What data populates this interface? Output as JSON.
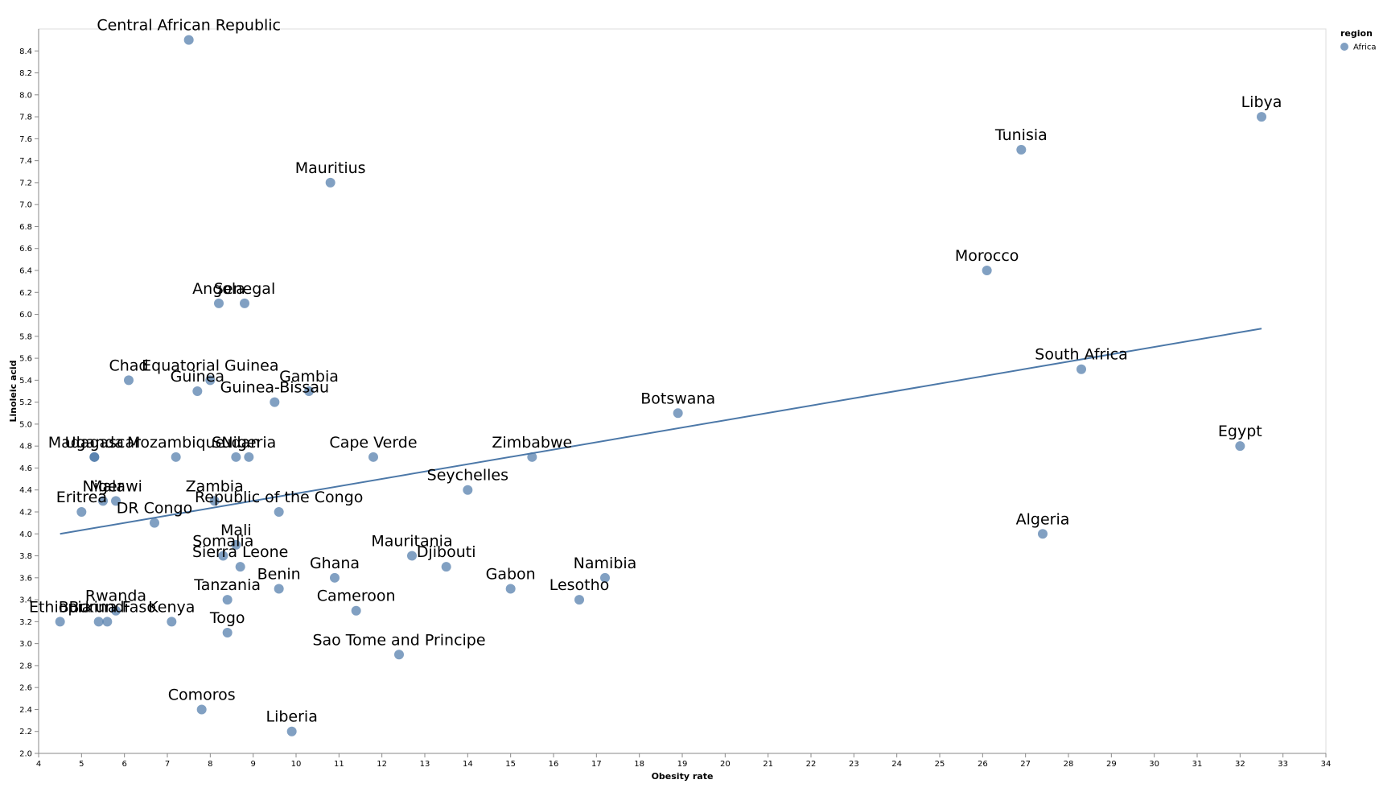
{
  "chart_data": {
    "type": "scatter",
    "xlabel": "Obesity rate",
    "ylabel": "Linoleic acid",
    "xlim": [
      4,
      34
    ],
    "ylim": [
      2.0,
      8.6
    ],
    "x_ticks": [
      4,
      5,
      6,
      7,
      8,
      9,
      10,
      11,
      12,
      13,
      14,
      15,
      16,
      17,
      18,
      19,
      20,
      21,
      22,
      23,
      24,
      25,
      26,
      27,
      28,
      29,
      30,
      31,
      32,
      33,
      34
    ],
    "y_ticks": [
      "2.0",
      "2.2",
      "2.4",
      "2.6",
      "2.8",
      "3.0",
      "3.2",
      "3.4",
      "3.6",
      "3.8",
      "4.0",
      "4.2",
      "4.4",
      "4.6",
      "4.8",
      "5.0",
      "5.2",
      "5.4",
      "5.6",
      "5.8",
      "6.0",
      "6.2",
      "6.4",
      "6.6",
      "6.8",
      "7.0",
      "7.2",
      "7.4",
      "7.6",
      "7.8",
      "8.0",
      "8.2",
      "8.4"
    ],
    "grid": false,
    "legend": {
      "title": "region",
      "entries": [
        "Africa"
      ],
      "placement": "top-right"
    },
    "colors": {
      "point": "#4c78a8",
      "line": "#4c78a8"
    },
    "trendline": {
      "x": [
        4.5,
        32.5
      ],
      "y": [
        4.0,
        5.87
      ]
    },
    "points": [
      {
        "label": "Central African Republic",
        "x": 7.5,
        "y": 8.5
      },
      {
        "label": "Libya",
        "x": 32.5,
        "y": 7.8
      },
      {
        "label": "Tunisia",
        "x": 26.9,
        "y": 7.5
      },
      {
        "label": "Mauritius",
        "x": 10.8,
        "y": 7.2
      },
      {
        "label": "Morocco",
        "x": 26.1,
        "y": 6.4
      },
      {
        "label": "Angola",
        "x": 8.2,
        "y": 6.1
      },
      {
        "label": "Senegal",
        "x": 8.8,
        "y": 6.1
      },
      {
        "label": "South Africa",
        "x": 28.3,
        "y": 5.5
      },
      {
        "label": "Chad",
        "x": 6.1,
        "y": 5.4
      },
      {
        "label": "Equatorial Guinea",
        "x": 8.0,
        "y": 5.4
      },
      {
        "label": "Guinea",
        "x": 7.7,
        "y": 5.3
      },
      {
        "label": "Gambia",
        "x": 10.3,
        "y": 5.3
      },
      {
        "label": "Guinea-Bissau",
        "x": 9.5,
        "y": 5.2
      },
      {
        "label": "Botswana",
        "x": 18.9,
        "y": 5.1
      },
      {
        "label": "Egypt",
        "x": 32.0,
        "y": 4.8
      },
      {
        "label": "Madagascar",
        "x": 5.3,
        "y": 4.7
      },
      {
        "label": "Uganda",
        "x": 5.3,
        "y": 4.7
      },
      {
        "label": "Mozambique",
        "x": 7.2,
        "y": 4.7
      },
      {
        "label": "Sudan",
        "x": 8.6,
        "y": 4.7
      },
      {
        "label": "Nigeria",
        "x": 8.9,
        "y": 4.7
      },
      {
        "label": "Cape Verde",
        "x": 11.8,
        "y": 4.7
      },
      {
        "label": "Zimbabwe",
        "x": 15.5,
        "y": 4.7
      },
      {
        "label": "Seychelles",
        "x": 14.0,
        "y": 4.4
      },
      {
        "label": "Niger",
        "x": 5.5,
        "y": 4.3
      },
      {
        "label": "Malawi",
        "x": 5.8,
        "y": 4.3
      },
      {
        "label": "Zambia",
        "x": 8.1,
        "y": 4.3
      },
      {
        "label": "Eritrea",
        "x": 5.0,
        "y": 4.2
      },
      {
        "label": "Republic of the Congo",
        "x": 9.6,
        "y": 4.2
      },
      {
        "label": "DR Congo",
        "x": 6.7,
        "y": 4.1
      },
      {
        "label": "Algeria",
        "x": 27.4,
        "y": 4.0
      },
      {
        "label": "Mali",
        "x": 8.6,
        "y": 3.9
      },
      {
        "label": "Somalia",
        "x": 8.3,
        "y": 3.8
      },
      {
        "label": "Mauritania",
        "x": 12.7,
        "y": 3.8
      },
      {
        "label": "Sierra Leone",
        "x": 8.7,
        "y": 3.7
      },
      {
        "label": "Djibouti",
        "x": 13.5,
        "y": 3.7
      },
      {
        "label": "Ghana",
        "x": 10.9,
        "y": 3.6
      },
      {
        "label": "Namibia",
        "x": 17.2,
        "y": 3.6
      },
      {
        "label": "Benin",
        "x": 9.6,
        "y": 3.5
      },
      {
        "label": "Gabon",
        "x": 15.0,
        "y": 3.5
      },
      {
        "label": "Tanzania",
        "x": 8.4,
        "y": 3.4
      },
      {
        "label": "Lesotho",
        "x": 16.6,
        "y": 3.4
      },
      {
        "label": "Rwanda",
        "x": 5.8,
        "y": 3.3
      },
      {
        "label": "Cameroon",
        "x": 11.4,
        "y": 3.3
      },
      {
        "label": "Ethiopia",
        "x": 4.5,
        "y": 3.2
      },
      {
        "label": "Burundi",
        "x": 5.4,
        "y": 3.2
      },
      {
        "label": "Burkina Faso",
        "x": 5.6,
        "y": 3.2
      },
      {
        "label": "Kenya",
        "x": 7.1,
        "y": 3.2
      },
      {
        "label": "Togo",
        "x": 8.4,
        "y": 3.1
      },
      {
        "label": "Sao Tome and Principe",
        "x": 12.4,
        "y": 2.9
      },
      {
        "label": "Comoros",
        "x": 7.8,
        "y": 2.4
      },
      {
        "label": "Liberia",
        "x": 9.9,
        "y": 2.2
      }
    ]
  }
}
